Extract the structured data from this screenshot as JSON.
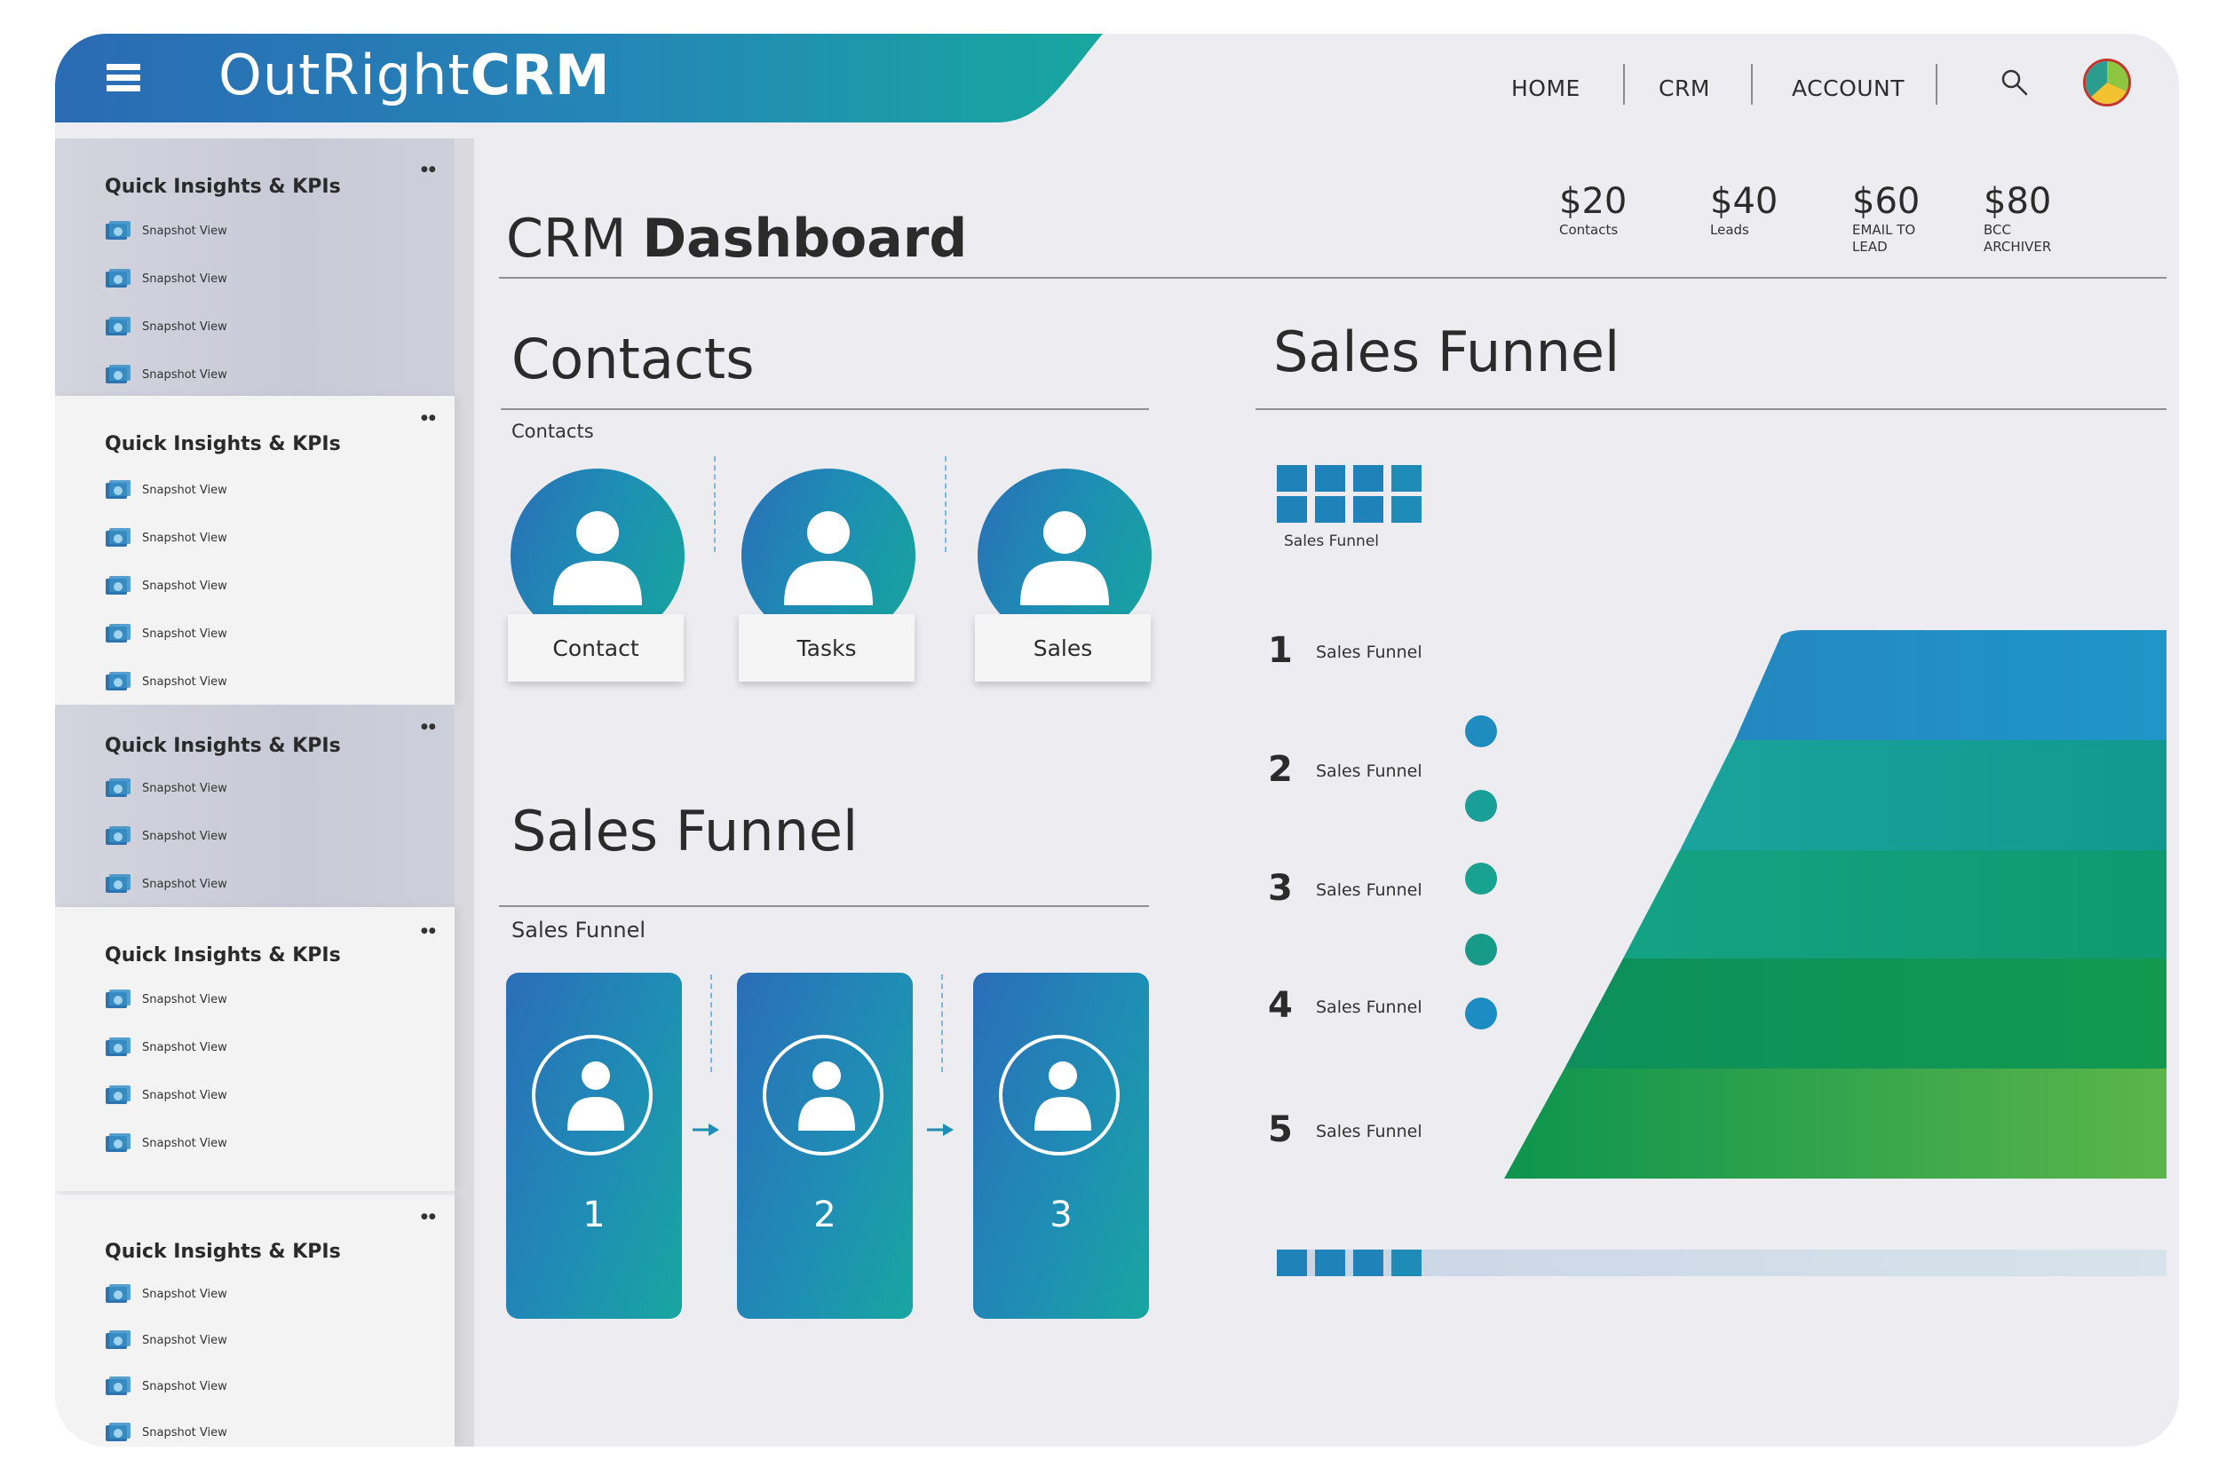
{
  "app": {
    "brand_light": "OutRight",
    "brand_bold": "CRM"
  },
  "nav": {
    "home": "HOME",
    "crm": "CRM",
    "account": "ACCOUNT"
  },
  "colors": {
    "brand_blue": "#2a6bb4",
    "brand_teal": "#17a79f",
    "funnel_green": "#0a9a55",
    "page_bg": "#ececf1"
  },
  "sidebar": {
    "panels": [
      {
        "title": "Quick Insights & KPIs",
        "items": [
          "Snapshot View",
          "Snapshot View",
          "Snapshot View",
          "Snapshot View"
        ]
      },
      {
        "title": "Quick Insights & KPIs",
        "items": [
          "Snapshot View",
          "Snapshot View",
          "Snapshot View",
          "Snapshot View",
          "Snapshot View"
        ]
      },
      {
        "title": "Quick Insights & KPIs",
        "items": [
          "Snapshot View",
          "Snapshot View",
          "Snapshot View"
        ]
      },
      {
        "title": "Quick Insights & KPIs",
        "items": [
          "Snapshot View",
          "Snapshot View",
          "Snapshot View",
          "Snapshot View"
        ]
      },
      {
        "title": "Quick Insights & KPIs",
        "items": [
          "Snapshot View",
          "Snapshot View",
          "Snapshot View",
          "Snapshot View"
        ]
      }
    ]
  },
  "dashboard": {
    "title_light": "CRM",
    "title_bold": "Dashboard"
  },
  "kpis": [
    {
      "value": "$20",
      "label": "Contacts"
    },
    {
      "value": "$40",
      "label": "Leads"
    },
    {
      "value": "$60",
      "label": "EMAIL TO LEAD"
    },
    {
      "value": "$80",
      "label": "BCC ARCHIVER"
    }
  ],
  "contacts": {
    "title": "Contacts",
    "subtitle": "Contacts",
    "cards": [
      "Contact",
      "Tasks",
      "Sales"
    ]
  },
  "sales_funnel_left": {
    "title": "Sales Funnel",
    "subtitle": "Sales Funnel",
    "steps": [
      "1",
      "2",
      "3"
    ]
  },
  "sales_funnel_right": {
    "title": "Sales Funnel",
    "legend_label": "Sales Funnel",
    "rows": [
      {
        "num": "1",
        "label": "Sales Funnel"
      },
      {
        "num": "2",
        "label": "Sales Funnel"
      },
      {
        "num": "3",
        "label": "Sales Funnel"
      },
      {
        "num": "4",
        "label": "Sales Funnel"
      },
      {
        "num": "5",
        "label": "Sales Funnel"
      }
    ]
  }
}
